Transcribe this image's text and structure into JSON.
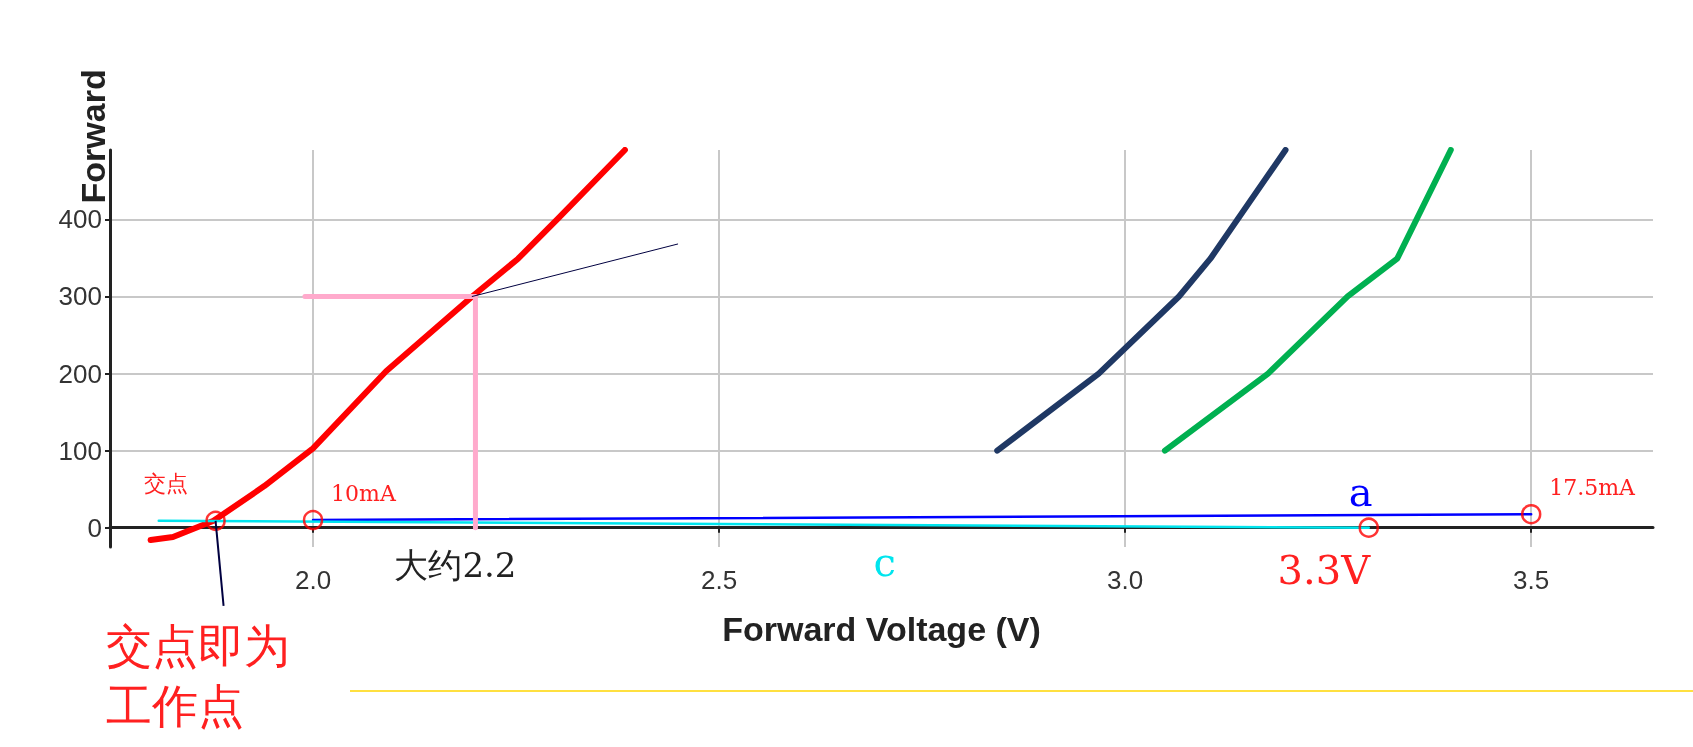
{
  "chart_data": {
    "type": "line",
    "ylabel": "Forward",
    "xlabel": "Forward Voltage (V)",
    "xlim": [
      1.75,
      3.65
    ],
    "xticks": [
      {
        "value": 2.0,
        "label": "2.0"
      },
      2.5,
      {
        "value": 3.0,
        "label": "3.0"
      },
      3.5
    ],
    "ylim": [
      -25,
      490
    ],
    "yticks": [
      0,
      100,
      200,
      300,
      400
    ],
    "grid": true,
    "marker": "none",
    "line_style": "solid",
    "series": [
      {
        "color": "#ff0000",
        "x": [
          1.8,
          1.8275,
          1.8775,
          1.94,
          2.0,
          2.09,
          2.196,
          2.2525,
          2.3025,
          2.384
        ],
        "values": [
          -16,
          -12,
          9,
          54,
          103,
          203,
          300,
          349,
          402,
          490
        ]
      },
      {
        "color": "#1f3864",
        "x": [
          2.8425,
          2.9675,
          3.0663,
          3.105,
          3.1975
        ],
        "values": [
          100,
          200,
          300,
          349,
          490
        ]
      },
      {
        "color": "#00b050",
        "x": [
          3.049,
          3.176,
          3.274,
          3.335,
          3.401
        ],
        "values": [
          100,
          200,
          300,
          349,
          490
        ]
      },
      {
        "name": "a",
        "color": "#0000ff",
        "x": [
          2.0,
          3.5
        ],
        "values": [
          10,
          17.5
        ]
      },
      {
        "name": "c",
        "color": "#00e5ee",
        "x": [
          1.81,
          3.3
        ],
        "values": [
          9,
          0
        ]
      },
      {
        "color": "#ffaacc",
        "x": [
          1.99,
          2.2,
          2.2
        ],
        "values": [
          300,
          300,
          0
        ]
      },
      {
        "color": "#000040",
        "x": [
          2.196,
          2.449
        ],
        "values": [
          300,
          368
        ]
      },
      {
        "type": "scatter",
        "marker": "circle",
        "color": "#ff0000",
        "x": [
          1.88,
          2.0,
          3.3,
          3.5
        ],
        "values": [
          9,
          10,
          0,
          17.5
        ]
      }
    ],
    "annotations": [
      {
        "text": "交点",
        "x": 1.88,
        "y": 9
      },
      {
        "text": "10mA",
        "x": 2.0,
        "y": 10
      },
      {
        "text": "17.5mA",
        "x": 3.5,
        "y": 17.5
      },
      {
        "text": "3.3V",
        "x": 3.3,
        "y": 0
      },
      {
        "text": "大约2.2",
        "x": 2.2,
        "y": 0
      },
      {
        "text": "交点即为工作点",
        "x": 1.88,
        "y": 9
      }
    ]
  }
}
